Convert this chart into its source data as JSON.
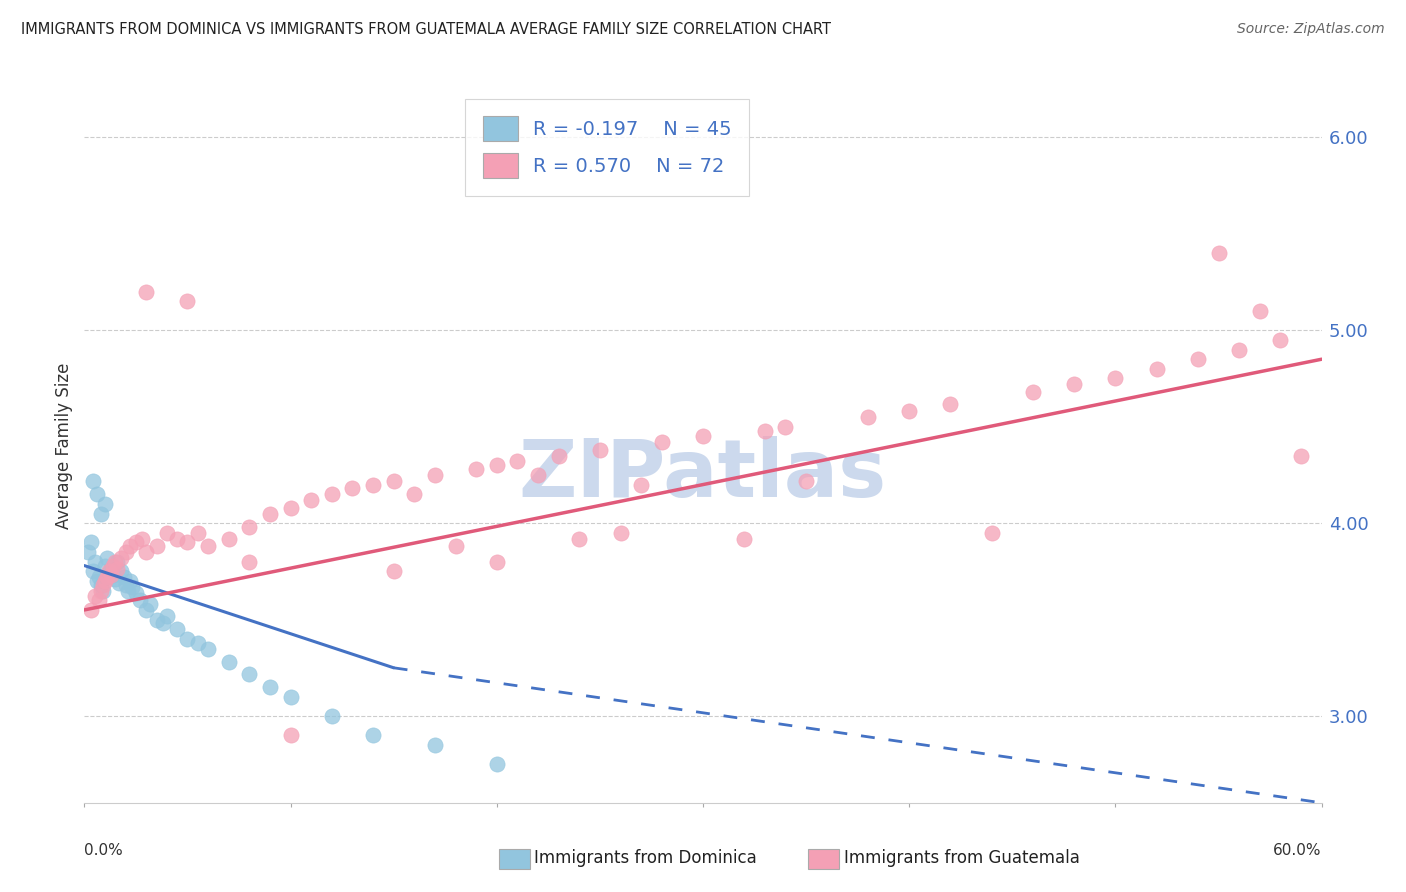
{
  "title": "IMMIGRANTS FROM DOMINICA VS IMMIGRANTS FROM GUATEMALA AVERAGE FAMILY SIZE CORRELATION CHART",
  "source": "Source: ZipAtlas.com",
  "ylabel": "Average Family Size",
  "y_ticks": [
    3.0,
    4.0,
    5.0,
    6.0
  ],
  "x_min": 0.0,
  "x_max": 60.0,
  "y_min": 2.55,
  "y_max": 6.25,
  "color_blue": "#92c5de",
  "color_pink": "#f4a0b5",
  "color_blue_line": "#4472c4",
  "color_pink_line": "#e05a7a",
  "watermark_color": "#ccd9ed",
  "dominica_x": [
    0.2,
    0.3,
    0.4,
    0.5,
    0.6,
    0.7,
    0.8,
    0.9,
    1.0,
    1.1,
    1.2,
    1.3,
    1.4,
    1.5,
    1.6,
    1.7,
    1.8,
    1.9,
    2.0,
    2.1,
    2.2,
    2.3,
    2.5,
    2.7,
    3.0,
    3.2,
    3.5,
    3.8,
    4.0,
    4.5,
    5.0,
    5.5,
    6.0,
    7.0,
    8.0,
    9.0,
    10.0,
    12.0,
    14.0,
    17.0,
    20.0,
    0.4,
    0.6,
    0.8,
    1.0
  ],
  "dominica_y": [
    3.85,
    3.9,
    3.75,
    3.8,
    3.7,
    3.72,
    3.68,
    3.65,
    3.78,
    3.82,
    3.74,
    3.76,
    3.73,
    3.71,
    3.8,
    3.69,
    3.75,
    3.72,
    3.68,
    3.65,
    3.7,
    3.67,
    3.64,
    3.6,
    3.55,
    3.58,
    3.5,
    3.48,
    3.52,
    3.45,
    3.4,
    3.38,
    3.35,
    3.28,
    3.22,
    3.15,
    3.1,
    3.0,
    2.9,
    2.85,
    2.75,
    4.22,
    4.15,
    4.05,
    4.1
  ],
  "guatemala_x": [
    0.3,
    0.5,
    0.7,
    0.8,
    0.9,
    1.0,
    1.1,
    1.2,
    1.3,
    1.4,
    1.5,
    1.6,
    1.8,
    2.0,
    2.2,
    2.5,
    2.8,
    3.0,
    3.5,
    4.0,
    4.5,
    5.0,
    5.5,
    6.0,
    7.0,
    8.0,
    9.0,
    10.0,
    11.0,
    12.0,
    13.0,
    14.0,
    15.0,
    16.0,
    17.0,
    18.0,
    19.0,
    20.0,
    21.0,
    22.0,
    23.0,
    24.0,
    25.0,
    26.0,
    27.0,
    28.0,
    30.0,
    32.0,
    33.0,
    34.0,
    35.0,
    38.0,
    40.0,
    42.0,
    44.0,
    46.0,
    48.0,
    50.0,
    52.0,
    54.0,
    55.0,
    56.0,
    57.0,
    58.0,
    59.0,
    3.0,
    5.0,
    8.0,
    10.0,
    15.0,
    20.0
  ],
  "guatemala_y": [
    3.55,
    3.62,
    3.6,
    3.65,
    3.68,
    3.7,
    3.72,
    3.75,
    3.73,
    3.78,
    3.8,
    3.76,
    3.82,
    3.85,
    3.88,
    3.9,
    3.92,
    3.85,
    3.88,
    3.95,
    3.92,
    3.9,
    3.95,
    3.88,
    3.92,
    3.98,
    4.05,
    4.08,
    4.12,
    4.15,
    4.18,
    4.2,
    4.22,
    4.15,
    4.25,
    3.88,
    4.28,
    4.3,
    4.32,
    4.25,
    4.35,
    3.92,
    4.38,
    3.95,
    4.2,
    4.42,
    4.45,
    3.92,
    4.48,
    4.5,
    4.22,
    4.55,
    4.58,
    4.62,
    3.95,
    4.68,
    4.72,
    4.75,
    4.8,
    4.85,
    5.4,
    4.9,
    5.1,
    4.95,
    4.35,
    5.2,
    5.15,
    3.8,
    2.9,
    3.75,
    3.8
  ]
}
